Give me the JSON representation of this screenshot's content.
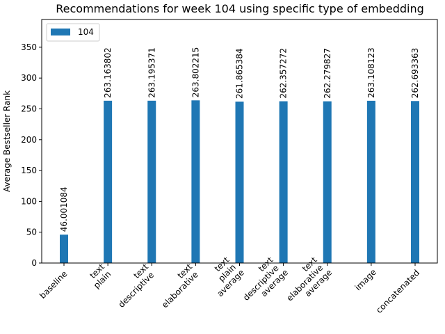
{
  "chart_data": {
    "type": "bar",
    "title": "Recommendations for week 104 using specific type of embedding",
    "xlabel": "",
    "ylabel": "Average Bestseller Rank",
    "ylim": [
      0,
      395
    ],
    "yticks": [
      0,
      50,
      100,
      150,
      200,
      250,
      300,
      350
    ],
    "grid": false,
    "legend_position": "top-left",
    "categories": [
      [
        "baseline"
      ],
      [
        "text",
        "plain"
      ],
      [
        "text",
        "descriptive"
      ],
      [
        "text",
        "elaborative"
      ],
      [
        "text",
        "plain",
        "average"
      ],
      [
        "text",
        "descriptive",
        "average"
      ],
      [
        "text",
        "elaborative",
        "average"
      ],
      [
        "image"
      ],
      [
        "concatenated"
      ]
    ],
    "series": [
      {
        "name": "104",
        "color": "#1f77b4",
        "values": [
          46.001084,
          263.163802,
          263.195371,
          263.802215,
          261.865384,
          262.357272,
          262.279827,
          263.108123,
          262.693363
        ],
        "labels": [
          "46.001084",
          "263.163802",
          "263.195371",
          "263.802215",
          "261.865384",
          "262.357272",
          "262.279827",
          "263.108123",
          "262.693363"
        ]
      }
    ]
  }
}
